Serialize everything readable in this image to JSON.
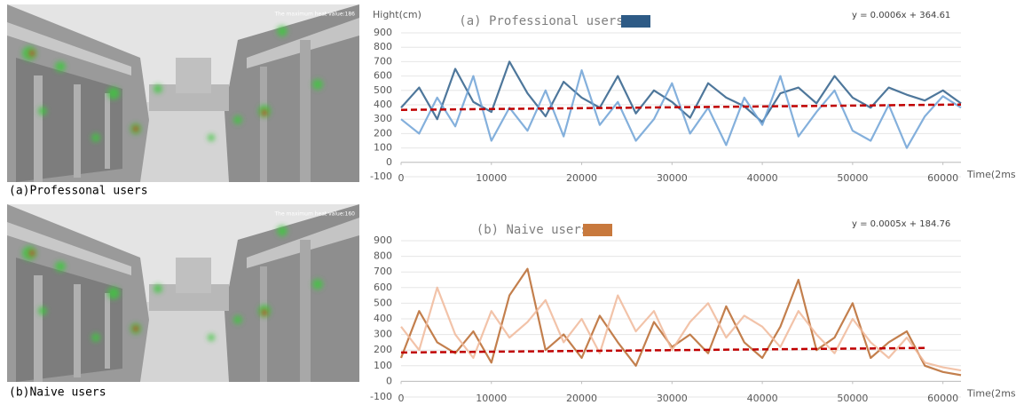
{
  "images": [
    {
      "caption": "(a)Professonal users",
      "overlay": "The maximum heat value:186"
    },
    {
      "caption": "(b)Naive users",
      "overlay": "The maximum heat value:160"
    }
  ],
  "chart_data": [
    {
      "type": "line",
      "title": "(a) Professional users",
      "legend_color": "#2e5b86",
      "y_label": "Hight(cm)",
      "x_label": "Time(2ms)",
      "x": [
        0,
        2000,
        4000,
        6000,
        8000,
        10000,
        12000,
        14000,
        16000,
        18000,
        20000,
        22000,
        24000,
        26000,
        28000,
        30000,
        32000,
        34000,
        36000,
        38000,
        40000,
        42000,
        44000,
        46000,
        48000,
        50000,
        52000,
        54000,
        56000,
        58000,
        60000,
        62000
      ],
      "series": [
        {
          "color": "#2f5f8a",
          "values": [
            380,
            520,
            300,
            650,
            420,
            350,
            700,
            480,
            320,
            560,
            450,
            380,
            600,
            340,
            500,
            420,
            310,
            550,
            450,
            390,
            280,
            480,
            520,
            410,
            600,
            450,
            380,
            520,
            470,
            430,
            500,
            410
          ]
        },
        {
          "color": "#6fa2d6",
          "values": [
            300,
            200,
            450,
            250,
            600,
            150,
            380,
            220,
            500,
            180,
            640,
            260,
            420,
            150,
            300,
            550,
            200,
            380,
            120,
            450,
            260,
            600,
            180,
            350,
            500,
            220,
            150,
            400,
            100,
            320,
            460,
            380
          ]
        }
      ],
      "trendline": {
        "slope": 0.0006,
        "intercept": 364.61,
        "label": "y = 0.0006x + 364.61",
        "color": "#c00000",
        "xrange": [
          0,
          62000
        ]
      },
      "xlim": [
        0,
        62000
      ],
      "ylim": [
        -100,
        900
      ],
      "xticks": [
        0,
        10000,
        20000,
        30000,
        40000,
        50000,
        60000
      ],
      "yticks": [
        -100,
        0,
        100,
        200,
        300,
        400,
        500,
        600,
        700,
        800,
        900
      ],
      "grid": true
    },
    {
      "type": "line",
      "title": "(b) Naive users",
      "legend_color": "#c8793d",
      "x_label": "Time(2ms)",
      "x": [
        0,
        2000,
        4000,
        6000,
        8000,
        10000,
        12000,
        14000,
        16000,
        18000,
        20000,
        22000,
        24000,
        26000,
        28000,
        30000,
        32000,
        34000,
        36000,
        38000,
        40000,
        42000,
        44000,
        46000,
        48000,
        50000,
        52000,
        54000,
        56000,
        58000,
        60000,
        62000
      ],
      "series": [
        {
          "color": "#b8682e",
          "values": [
            150,
            450,
            250,
            180,
            320,
            120,
            550,
            720,
            200,
            300,
            150,
            420,
            250,
            100,
            380,
            220,
            300,
            180,
            480,
            250,
            150,
            350,
            650,
            200,
            280,
            500,
            150,
            250,
            320,
            100,
            60,
            40
          ]
        },
        {
          "color": "#f0b89a",
          "values": [
            350,
            200,
            600,
            300,
            150,
            450,
            280,
            380,
            520,
            250,
            400,
            180,
            550,
            320,
            450,
            200,
            380,
            500,
            280,
            420,
            350,
            220,
            450,
            300,
            180,
            400,
            250,
            150,
            280,
            120,
            90,
            70
          ]
        }
      ],
      "trendline": {
        "slope": 0.0005,
        "intercept": 184.76,
        "label": "y = 0.0005x + 184.76",
        "color": "#c00000",
        "xrange": [
          0,
          58000
        ]
      },
      "xlim": [
        0,
        62000
      ],
      "ylim": [
        -100,
        900
      ],
      "xticks": [
        0,
        10000,
        20000,
        30000,
        40000,
        50000,
        60000
      ],
      "yticks": [
        -100,
        0,
        100,
        200,
        300,
        400,
        500,
        600,
        700,
        800,
        900
      ],
      "grid": true
    }
  ]
}
